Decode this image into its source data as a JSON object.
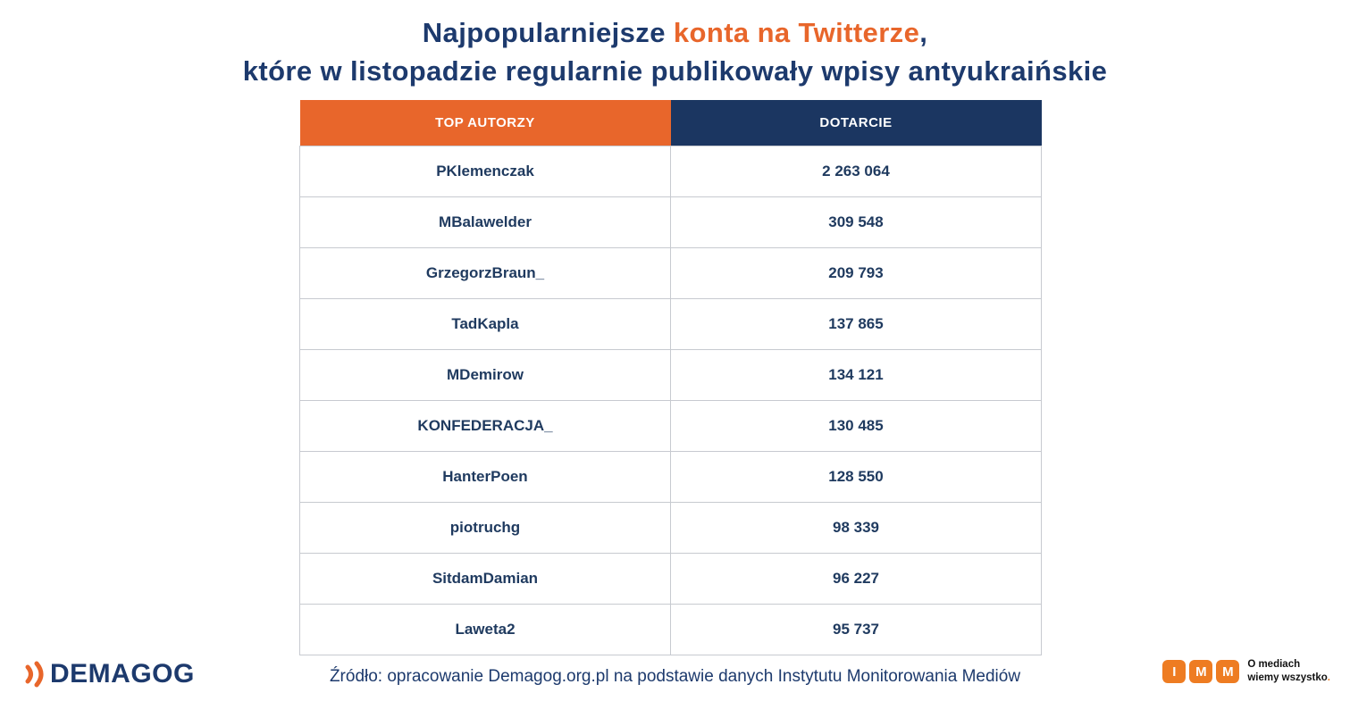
{
  "colors": {
    "navy": "#1d3a6d",
    "header_navy": "#1b3661",
    "orange": "#e8662b",
    "imm_orange": "#ee7c22",
    "grid_border": "#c7cad0"
  },
  "title": {
    "line1_prefix": "Najpopularniejsze ",
    "line1_accent": "konta na Twitterze",
    "line1_suffix": ",",
    "line2": "które w listopadzie regularnie publikowały wpisy antyukraińskie"
  },
  "table": {
    "headers": {
      "authors": "TOP AUTORZY",
      "reach": "DOTARCIE"
    },
    "rows": [
      {
        "author": "PKlemenczak",
        "reach": "2 263 064"
      },
      {
        "author": "MBalawelder",
        "reach": "309 548"
      },
      {
        "author": "GrzegorzBraun_",
        "reach": "209 793"
      },
      {
        "author": "TadKapla",
        "reach": "137 865"
      },
      {
        "author": "MDemirow",
        "reach": "134 121"
      },
      {
        "author": "KONFEDERACJA_",
        "reach": "130 485"
      },
      {
        "author": "HanterPoen",
        "reach": "128 550"
      },
      {
        "author": "piotruchg",
        "reach": "98 339"
      },
      {
        "author": "SitdamDamian",
        "reach": "96 227"
      },
      {
        "author": "Laweta2",
        "reach": "95 737"
      }
    ]
  },
  "footer": {
    "demagog_logo_text": "DEMAGOG",
    "source": "Źródło: opracowanie Demagog.org.pl na podstawie danych Instytutu Monitorowania Mediów",
    "imm_letters": [
      "I",
      "M",
      "M"
    ],
    "imm_tagline_line1": "O mediach",
    "imm_tagline_line2": "wiemy wszystko",
    "imm_tagline_dot": "."
  },
  "chart_data": {
    "type": "table",
    "title": "Najpopularniejsze konta na Twitterze, które w listopadzie regularnie publikowały wpisy antyukraińskie",
    "columns": [
      "TOP AUTORZY",
      "DOTARCIE"
    ],
    "categories": [
      "PKlemenczak",
      "MBalawelder",
      "GrzegorzBraun_",
      "TadKapla",
      "MDemirow",
      "KONFEDERACJA_",
      "HanterPoen",
      "piotruchg",
      "SitdamDamian",
      "Laweta2"
    ],
    "values": [
      2263064,
      309548,
      209793,
      137865,
      134121,
      130485,
      128550,
      98339,
      96227,
      95737
    ],
    "source_note": "Źródło: opracowanie Demagog.org.pl na podstawie danych Instytutu Monitorowania Mediów"
  }
}
